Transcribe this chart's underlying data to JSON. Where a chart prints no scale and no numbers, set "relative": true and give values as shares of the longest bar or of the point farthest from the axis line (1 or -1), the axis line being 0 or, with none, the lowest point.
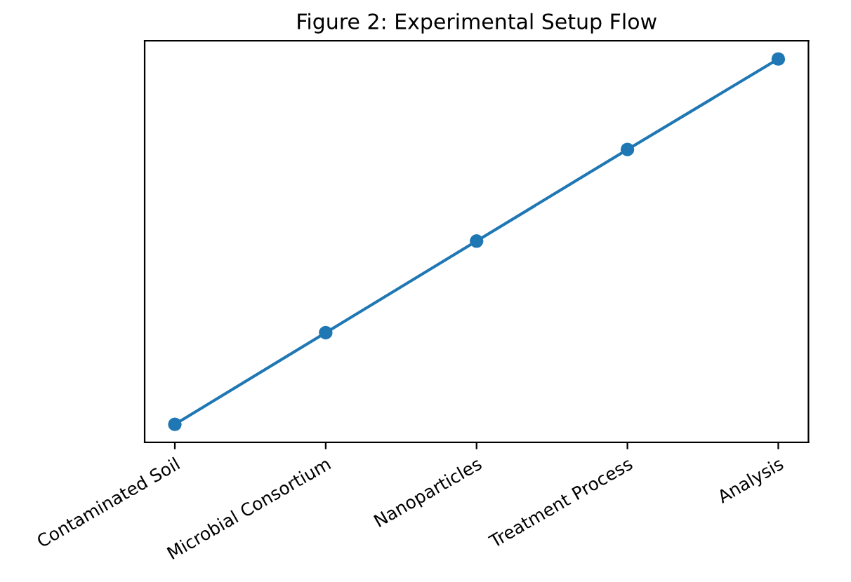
{
  "chart_data": {
    "type": "line",
    "title": "Figure 2: Experimental Setup Flow",
    "categories": [
      "Contaminated Soil",
      "Microbial Consortium",
      "Nanoparticles",
      "Treatment Process",
      "Analysis"
    ],
    "series": [
      {
        "color": "#1f77b4",
        "values": [
          0.047,
          0.286,
          0.525,
          0.764,
          1.0
        ]
      }
    ],
    "relative": true,
    "marker": "circle",
    "line_style": "solid",
    "grid": false,
    "legend": false,
    "tick_labels": "x"
  }
}
